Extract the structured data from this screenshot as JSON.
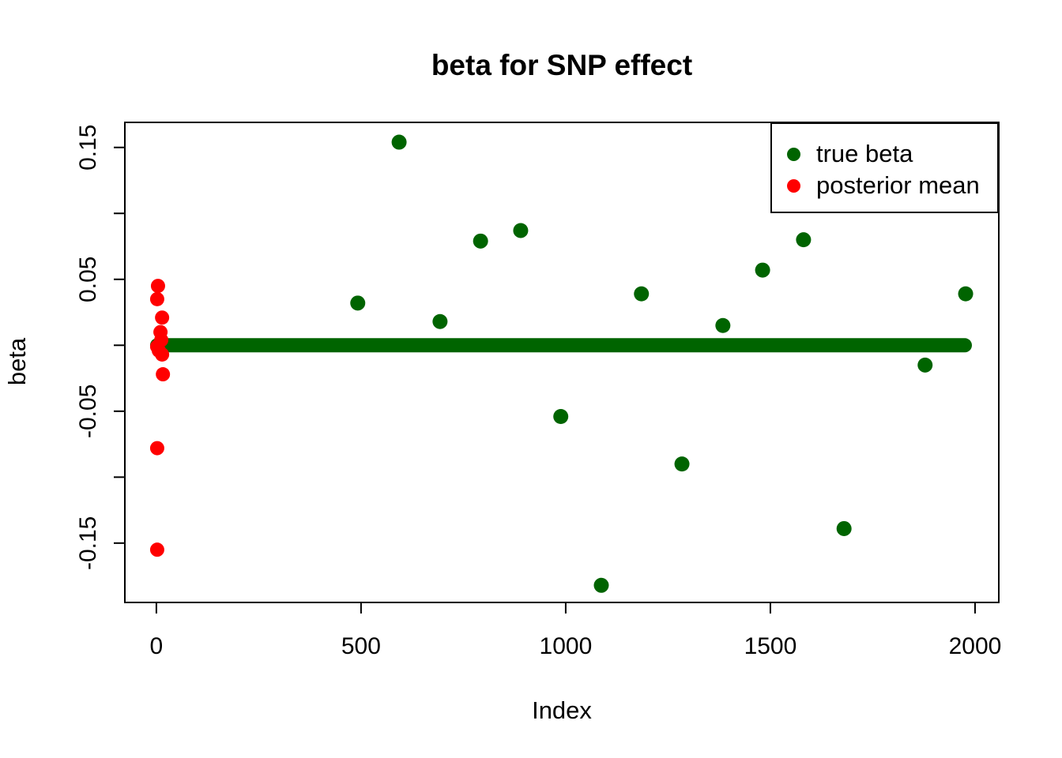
{
  "chart_data": {
    "type": "scatter",
    "title": "beta for SNP effect",
    "xlabel": "Index",
    "ylabel": "beta",
    "xlim": [
      -77,
      2058
    ],
    "ylim": [
      -0.195,
      0.169
    ],
    "grid": false,
    "x_ticks": [
      {
        "v": 0,
        "label": "0"
      },
      {
        "v": 500,
        "label": "500"
      },
      {
        "v": 1000,
        "label": "1000"
      },
      {
        "v": 1500,
        "label": "1500"
      },
      {
        "v": 2000,
        "label": "2000"
      }
    ],
    "y_ticks": [
      {
        "v": 0.15,
        "label": "0.15"
      },
      {
        "v": 0.1,
        "label": ""
      },
      {
        "v": 0.05,
        "label": "0.05"
      },
      {
        "v": 0.0,
        "label": ""
      },
      {
        "v": -0.05,
        "label": "-0.05"
      },
      {
        "v": -0.1,
        "label": ""
      },
      {
        "v": -0.15,
        "label": "-0.15"
      }
    ],
    "legend": {
      "position": "topright",
      "entries": [
        {
          "label": "true beta",
          "color": "#006400"
        },
        {
          "label": "posterior mean",
          "color": "#FF0000"
        }
      ]
    },
    "series": [
      {
        "name": "true beta",
        "color": "#006400",
        "marker": "filled-circle",
        "zero_run": {
          "note": "approx 2000 overlapping points at beta = 0 drawn as a thick line",
          "from_index": 2,
          "to_index": 1975,
          "beta": 0
        },
        "points": [
          [
            492,
            0.032
          ],
          [
            593,
            0.154
          ],
          [
            693,
            0.018
          ],
          [
            792,
            0.079
          ],
          [
            890,
            0.087
          ],
          [
            988,
            -0.054
          ],
          [
            1087,
            -0.182
          ],
          [
            1185,
            0.039
          ],
          [
            1284,
            -0.09
          ],
          [
            1384,
            0.015
          ],
          [
            1481,
            0.057
          ],
          [
            1581,
            0.08
          ],
          [
            1680,
            -0.139
          ],
          [
            1878,
            -0.015
          ],
          [
            1977,
            0.039
          ]
        ]
      },
      {
        "name": "posterior mean",
        "color": "#FF0000",
        "marker": "filled-circle",
        "points": [
          [
            4,
            0.045
          ],
          [
            2,
            0.035
          ],
          [
            14,
            0.021
          ],
          [
            10,
            0.01
          ],
          [
            12,
            0.004
          ],
          [
            2,
            -0.001
          ],
          [
            6,
            -0.004
          ],
          [
            14,
            -0.007
          ],
          [
            16,
            -0.022
          ],
          [
            2,
            -0.078
          ],
          [
            2,
            -0.155
          ]
        ]
      }
    ]
  }
}
